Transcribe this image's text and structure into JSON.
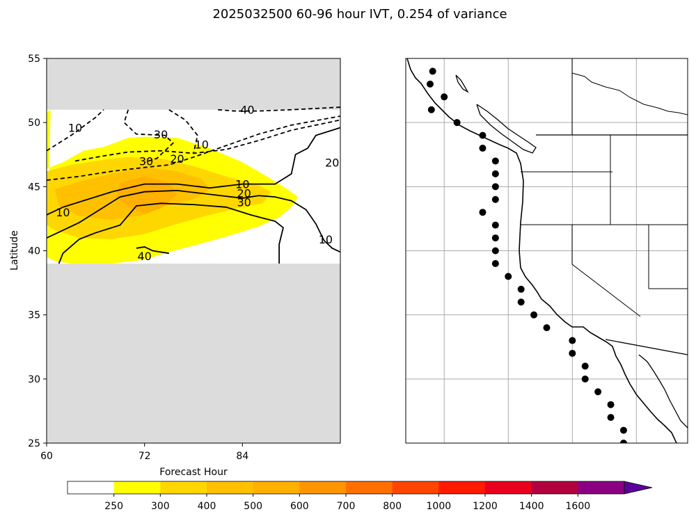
{
  "figure": {
    "title": "2025032500 60-96 hour IVT, 0.254 of variance"
  },
  "chart_data": [
    {
      "type": "contour",
      "xlabel": "Forecast Hour",
      "ylabel": "Latitude",
      "xlim": [
        60,
        96
      ],
      "ylim": [
        25,
        55
      ],
      "xticks": [
        60,
        72,
        84
      ],
      "yticks": [
        25,
        30,
        35,
        40,
        45,
        50,
        55
      ],
      "data_lat_range": [
        39,
        51
      ],
      "missing_color": "#dcdcdc",
      "filled_levels": [
        {
          "level": 250,
          "color": "#ffff00",
          "polygon": [
            [
              60.5,
              51
            ],
            [
              60,
              50.8
            ],
            [
              60,
              46.4
            ],
            [
              62,
              46.9
            ],
            [
              64.5,
              47.8
            ],
            [
              67,
              48.1
            ],
            [
              70,
              48.8
            ],
            [
              72,
              48.9
            ],
            [
              76,
              48.8
            ],
            [
              80,
              48
            ],
            [
              84,
              46.9
            ],
            [
              87,
              45.8
            ],
            [
              89.5,
              44.8
            ],
            [
              90.8,
              44.2
            ],
            [
              90,
              43.4
            ],
            [
              88.5,
              42.6
            ],
            [
              86,
              41.9
            ],
            [
              82,
              41.1
            ],
            [
              78,
              40.4
            ],
            [
              75,
              39.9
            ],
            [
              72,
              39.3
            ],
            [
              68,
              39
            ],
            [
              63,
              39
            ],
            [
              61,
              39.2
            ],
            [
              60,
              39.5
            ]
          ]
        },
        {
          "level": 300,
          "color": "#ffd700",
          "polygon": [
            [
              60,
              46.2
            ],
            [
              63,
              46.7
            ],
            [
              67,
              47.1
            ],
            [
              70,
              47.3
            ],
            [
              74,
              47.2
            ],
            [
              78,
              46.6
            ],
            [
              82,
              45.8
            ],
            [
              86,
              45.1
            ],
            [
              87.5,
              44.6
            ],
            [
              86.5,
              43.7
            ],
            [
              84,
              43.4
            ],
            [
              80,
              42.8
            ],
            [
              76,
              42.1
            ],
            [
              72,
              41.3
            ],
            [
              68,
              40.9
            ],
            [
              64,
              41
            ],
            [
              61,
              41.6
            ],
            [
              60,
              42
            ]
          ]
        },
        {
          "level": 400,
          "color": "#ffc000",
          "polygon": [
            [
              61,
              44.8
            ],
            [
              64,
              45.4
            ],
            [
              68,
              46
            ],
            [
              72,
              46.5
            ],
            [
              76,
              46.2
            ],
            [
              79,
              45.6
            ],
            [
              80,
              44.8
            ],
            [
              78,
              44
            ],
            [
              74,
              43.4
            ],
            [
              72,
              42.8
            ],
            [
              68,
              42.4
            ],
            [
              64,
              42.7
            ],
            [
              61.5,
              43.5
            ]
          ]
        },
        {
          "level": 500,
          "color": "#ffb000",
          "polygon": [
            [
              69,
              45.3
            ],
            [
              72,
              45.8
            ],
            [
              75,
              45.3
            ],
            [
              76,
              44.4
            ],
            [
              74,
              43.3
            ],
            [
              72,
              42.9
            ],
            [
              70,
              43.4
            ],
            [
              68.5,
              44.3
            ]
          ]
        }
      ],
      "contours": [
        {
          "level": 10,
          "style": "dashed",
          "points": [
            [
              60,
              47.8
            ],
            [
              63,
              49
            ],
            [
              66,
              50.4
            ],
            [
              67,
              51
            ]
          ]
        },
        {
          "level": 30,
          "style": "dashed",
          "points": [
            [
              63.5,
              47
            ],
            [
              67,
              47.4
            ],
            [
              70,
              47.7
            ],
            [
              74,
              47.8
            ],
            [
              78,
              47.6
            ],
            [
              82,
              47.9
            ],
            [
              86,
              48.6
            ],
            [
              90,
              49.4
            ],
            [
              96,
              50.2
            ]
          ]
        },
        {
          "level": 30,
          "style": "dashed",
          "points": [
            [
              70,
              51
            ],
            [
              69.5,
              50
            ],
            [
              71,
              49.1
            ],
            [
              74.5,
              49
            ],
            [
              75.5,
              48.4
            ],
            [
              73.5,
              47.2
            ],
            [
              72,
              46.9
            ]
          ]
        },
        {
          "level": 20,
          "style": "dashed",
          "points": [
            [
              60,
              45.5
            ],
            [
              64,
              45.8
            ],
            [
              68,
              46.2
            ],
            [
              72,
              46.5
            ],
            [
              75,
              46.7
            ],
            [
              78,
              47.3
            ],
            [
              82,
              48.2
            ],
            [
              86,
              49.1
            ],
            [
              90,
              49.8
            ],
            [
              96,
              50.5
            ]
          ]
        },
        {
          "level": 10,
          "style": "dashed",
          "points": [
            [
              75,
              51
            ],
            [
              77,
              50.2
            ],
            [
              78.5,
              49
            ],
            [
              78,
              47.6
            ]
          ]
        },
        {
          "level": 40,
          "style": "dashed",
          "points": [
            [
              81,
              51
            ],
            [
              83,
              50.9
            ],
            [
              86,
              50.9
            ],
            [
              90,
              51
            ],
            [
              96,
              51.2
            ]
          ]
        },
        {
          "level": 10,
          "style": "solid",
          "points": [
            [
              60,
              42.8
            ],
            [
              62,
              43.4
            ],
            [
              65,
              44
            ],
            [
              68,
              44.6
            ],
            [
              72,
              45.2
            ],
            [
              76,
              45.2
            ],
            [
              80,
              44.9
            ],
            [
              84,
              45.2
            ],
            [
              88,
              45.2
            ],
            [
              90,
              46
            ],
            [
              90.5,
              47.5
            ],
            [
              92,
              48
            ],
            [
              93,
              49
            ],
            [
              96,
              49.6
            ]
          ]
        },
        {
          "level": 20,
          "style": "solid",
          "points": [
            [
              60,
              41
            ],
            [
              62,
              41.6
            ],
            [
              64,
              42.2
            ],
            [
              67,
              43.4
            ],
            [
              69,
              44.2
            ],
            [
              72,
              44.6
            ],
            [
              76,
              44.7
            ],
            [
              80,
              44.4
            ],
            [
              84,
              44.1
            ],
            [
              86,
              44.3
            ],
            [
              88,
              44.2
            ],
            [
              90,
              43.9
            ],
            [
              91.8,
              43.2
            ],
            [
              93,
              42.1
            ],
            [
              94,
              40.8
            ],
            [
              95,
              40.2
            ],
            [
              96,
              39.9
            ]
          ]
        },
        {
          "level": 30,
          "style": "solid",
          "points": [
            [
              61.5,
              39
            ],
            [
              62,
              39.8
            ],
            [
              64,
              40.9
            ],
            [
              66,
              41.4
            ],
            [
              69,
              42
            ],
            [
              71,
              43.5
            ],
            [
              74,
              43.7
            ],
            [
              78,
              43.6
            ],
            [
              82,
              43.4
            ],
            [
              85,
              42.8
            ],
            [
              88,
              42.3
            ],
            [
              89,
              41.8
            ],
            [
              88.5,
              40.5
            ],
            [
              88.5,
              39
            ]
          ]
        },
        {
          "level": 40,
          "style": "solid",
          "points": [
            [
              71,
              40.2
            ],
            [
              72,
              40.3
            ],
            [
              73,
              40
            ],
            [
              75,
              39.8
            ]
          ]
        }
      ],
      "contour_labels": [
        {
          "text": "40",
          "x": 84.6,
          "y": 51.0
        },
        {
          "text": "10",
          "x": 63.5,
          "y": 49.6
        },
        {
          "text": "30",
          "x": 74.0,
          "y": 49.1
        },
        {
          "text": "10",
          "x": 79.0,
          "y": 48.3
        },
        {
          "text": "30",
          "x": 72.2,
          "y": 47.0
        },
        {
          "text": "20",
          "x": 76.0,
          "y": 47.2
        },
        {
          "text": "20",
          "x": 95.0,
          "y": 46.9
        },
        {
          "text": "10",
          "x": 84.0,
          "y": 45.2
        },
        {
          "text": "20",
          "x": 84.2,
          "y": 44.5
        },
        {
          "text": "30",
          "x": 84.2,
          "y": 43.8
        },
        {
          "text": "10",
          "x": 62.0,
          "y": 43.0
        },
        {
          "text": "10",
          "x": 94.2,
          "y": 40.9
        },
        {
          "text": "40",
          "x": 72.0,
          "y": 39.6
        }
      ]
    },
    {
      "type": "map",
      "extent_lon": [
        -135,
        -113
      ],
      "extent_lat": [
        25,
        55
      ],
      "gridlines_lon": [
        -132,
        -127,
        -122,
        -117
      ],
      "gridlines_lat": [
        30,
        35,
        40,
        45,
        50
      ],
      "point_color": "#000000",
      "points": [
        [
          -132.9,
          54.0
        ],
        [
          -133.1,
          53.0
        ],
        [
          -132.0,
          52.0
        ],
        [
          -133.0,
          51.0
        ],
        [
          -131.0,
          50.0
        ],
        [
          -129.0,
          49.0
        ],
        [
          -129.0,
          48.0
        ],
        [
          -128.0,
          47.0
        ],
        [
          -128.0,
          46.0
        ],
        [
          -128.0,
          45.0
        ],
        [
          -128.0,
          44.0
        ],
        [
          -129.0,
          43.0
        ],
        [
          -128.0,
          42.0
        ],
        [
          -128.0,
          41.0
        ],
        [
          -128.0,
          40.0
        ],
        [
          -128.0,
          39.0
        ],
        [
          -127.0,
          38.0
        ],
        [
          -126.0,
          37.0
        ],
        [
          -126.0,
          36.0
        ],
        [
          -125.0,
          35.0
        ],
        [
          -124.0,
          34.0
        ],
        [
          -122.0,
          33.0
        ],
        [
          -122.0,
          32.0
        ],
        [
          -121.0,
          31.0
        ],
        [
          -121.0,
          30.0
        ],
        [
          -120.0,
          29.0
        ],
        [
          -119.0,
          28.0
        ],
        [
          -119.0,
          27.0
        ],
        [
          -118.0,
          26.0
        ],
        [
          -118.0,
          25.0
        ]
      ]
    }
  ],
  "colorbar": {
    "tick_labels": [
      "250",
      "300",
      "400",
      "500",
      "600",
      "700",
      "800",
      "1000",
      "1200",
      "1400",
      "1600"
    ],
    "colors": [
      "#ffffff",
      "#ffff00",
      "#ffd700",
      "#ffc000",
      "#ffb000",
      "#ff9500",
      "#ff7000",
      "#ff4500",
      "#ff1a00",
      "#e8001e",
      "#b3003f",
      "#8b0080",
      "#6000a0",
      "#5a009c"
    ],
    "extend": "max"
  }
}
